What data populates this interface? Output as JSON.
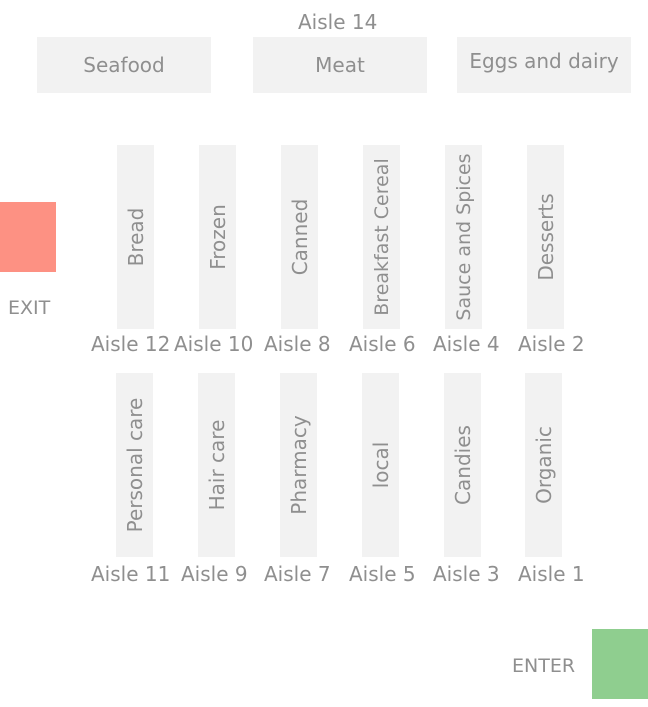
{
  "top_aisle_label": "Aisle 14",
  "top_sections": [
    "Seafood",
    "Meat",
    "Eggs and dairy"
  ],
  "upper_aisles": [
    {
      "section": "Bread",
      "label": "Aisle 12"
    },
    {
      "section": "Frozen",
      "label": "Aisle 10"
    },
    {
      "section": "Canned",
      "label": "Aisle 8"
    },
    {
      "section": "Breakfast  Cereal",
      "label": "Aisle 6"
    },
    {
      "section": "Sauce and Spices",
      "label": "Aisle 4"
    },
    {
      "section": "Desserts",
      "label": "Aisle 2"
    }
  ],
  "lower_aisles": [
    {
      "section": "Personal care",
      "label": "Aisle 11"
    },
    {
      "section": "Hair care",
      "label": "Aisle 9"
    },
    {
      "section": "Pharmacy",
      "label": "Aisle 7"
    },
    {
      "section": "local",
      "label": "Aisle 5"
    },
    {
      "section": "Candies",
      "label": "Aisle 3"
    },
    {
      "section": "Organic",
      "label": "Aisle 1"
    }
  ],
  "exit": {
    "label": "EXIT",
    "color": "#fd9183"
  },
  "enter": {
    "label": "ENTER",
    "color": "#8fce8f"
  },
  "colors": {
    "shelf": "#f2f2f2",
    "text": "#8f8f8f"
  }
}
